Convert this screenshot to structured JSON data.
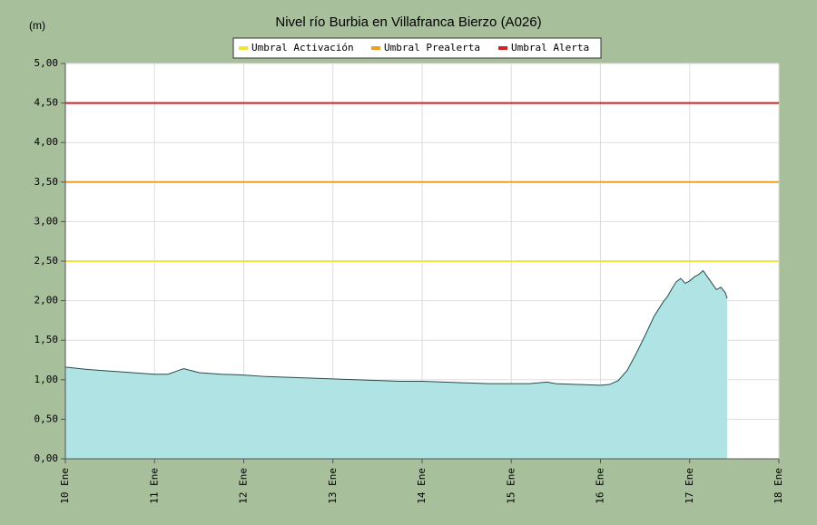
{
  "chart_data": {
    "type": "area",
    "title": "Nivel río Burbia en Villafranca Bierzo  (A026)",
    "ylabel": "(m)",
    "x": [
      10.0,
      10.25,
      10.5,
      10.75,
      11.0,
      11.15,
      11.3,
      11.33,
      11.5,
      11.75,
      12.0,
      12.25,
      12.5,
      12.75,
      13.0,
      13.25,
      13.5,
      13.75,
      14.0,
      14.25,
      14.5,
      14.75,
      15.0,
      15.2,
      15.4,
      15.5,
      15.75,
      16.0,
      16.1,
      16.2,
      16.3,
      16.4,
      16.5,
      16.6,
      16.7,
      16.75,
      16.8,
      16.85,
      16.9,
      16.95,
      17.0,
      17.05,
      17.1,
      17.15,
      17.2,
      17.25,
      17.3,
      17.35,
      17.4,
      17.42
    ],
    "values": [
      1.16,
      1.13,
      1.11,
      1.09,
      1.07,
      1.07,
      1.13,
      1.14,
      1.09,
      1.07,
      1.06,
      1.04,
      1.03,
      1.02,
      1.01,
      1.0,
      0.99,
      0.98,
      0.98,
      0.97,
      0.96,
      0.95,
      0.95,
      0.95,
      0.97,
      0.95,
      0.94,
      0.93,
      0.94,
      0.99,
      1.12,
      1.33,
      1.56,
      1.8,
      1.98,
      2.05,
      2.15,
      2.24,
      2.28,
      2.22,
      2.25,
      2.3,
      2.33,
      2.38,
      2.3,
      2.22,
      2.14,
      2.17,
      2.1,
      2.03
    ],
    "color": "#b0e4e4",
    "thresholds": [
      {
        "name": "Umbral Activación",
        "color": "#f2e43a",
        "value": 2.5
      },
      {
        "name": "Umbral Prealerta",
        "color": "#f0a020",
        "value": 3.5
      },
      {
        "name": "Umbral Alerta",
        "color": "#d42020",
        "value": 4.5
      }
    ],
    "xlim": [
      10,
      18
    ],
    "xticks": [
      {
        "value": 10,
        "label": "10 Ene"
      },
      {
        "value": 11,
        "label": "11 Ene"
      },
      {
        "value": 12,
        "label": "12 Ene"
      },
      {
        "value": 13,
        "label": "13 Ene"
      },
      {
        "value": 14,
        "label": "14 Ene"
      },
      {
        "value": 15,
        "label": "15 Ene"
      },
      {
        "value": 16,
        "label": "16 Ene"
      },
      {
        "value": 17,
        "label": "17 Ene"
      },
      {
        "value": 18,
        "label": "18 Ene"
      }
    ],
    "ylim": [
      0,
      5
    ],
    "yticks": [
      {
        "value": 0,
        "label": "0,00"
      },
      {
        "value": 0.5,
        "label": "0,50"
      },
      {
        "value": 1,
        "label": "1,00"
      },
      {
        "value": 1.5,
        "label": "1,50"
      },
      {
        "value": 2,
        "label": "2,00"
      },
      {
        "value": 2.5,
        "label": "2,50"
      },
      {
        "value": 3,
        "label": "3,00"
      },
      {
        "value": 3.5,
        "label": "3,50"
      },
      {
        "value": 4,
        "label": "4,00"
      },
      {
        "value": 4.5,
        "label": "4,50"
      },
      {
        "value": 5,
        "label": "5,00"
      }
    ],
    "grid": true
  }
}
